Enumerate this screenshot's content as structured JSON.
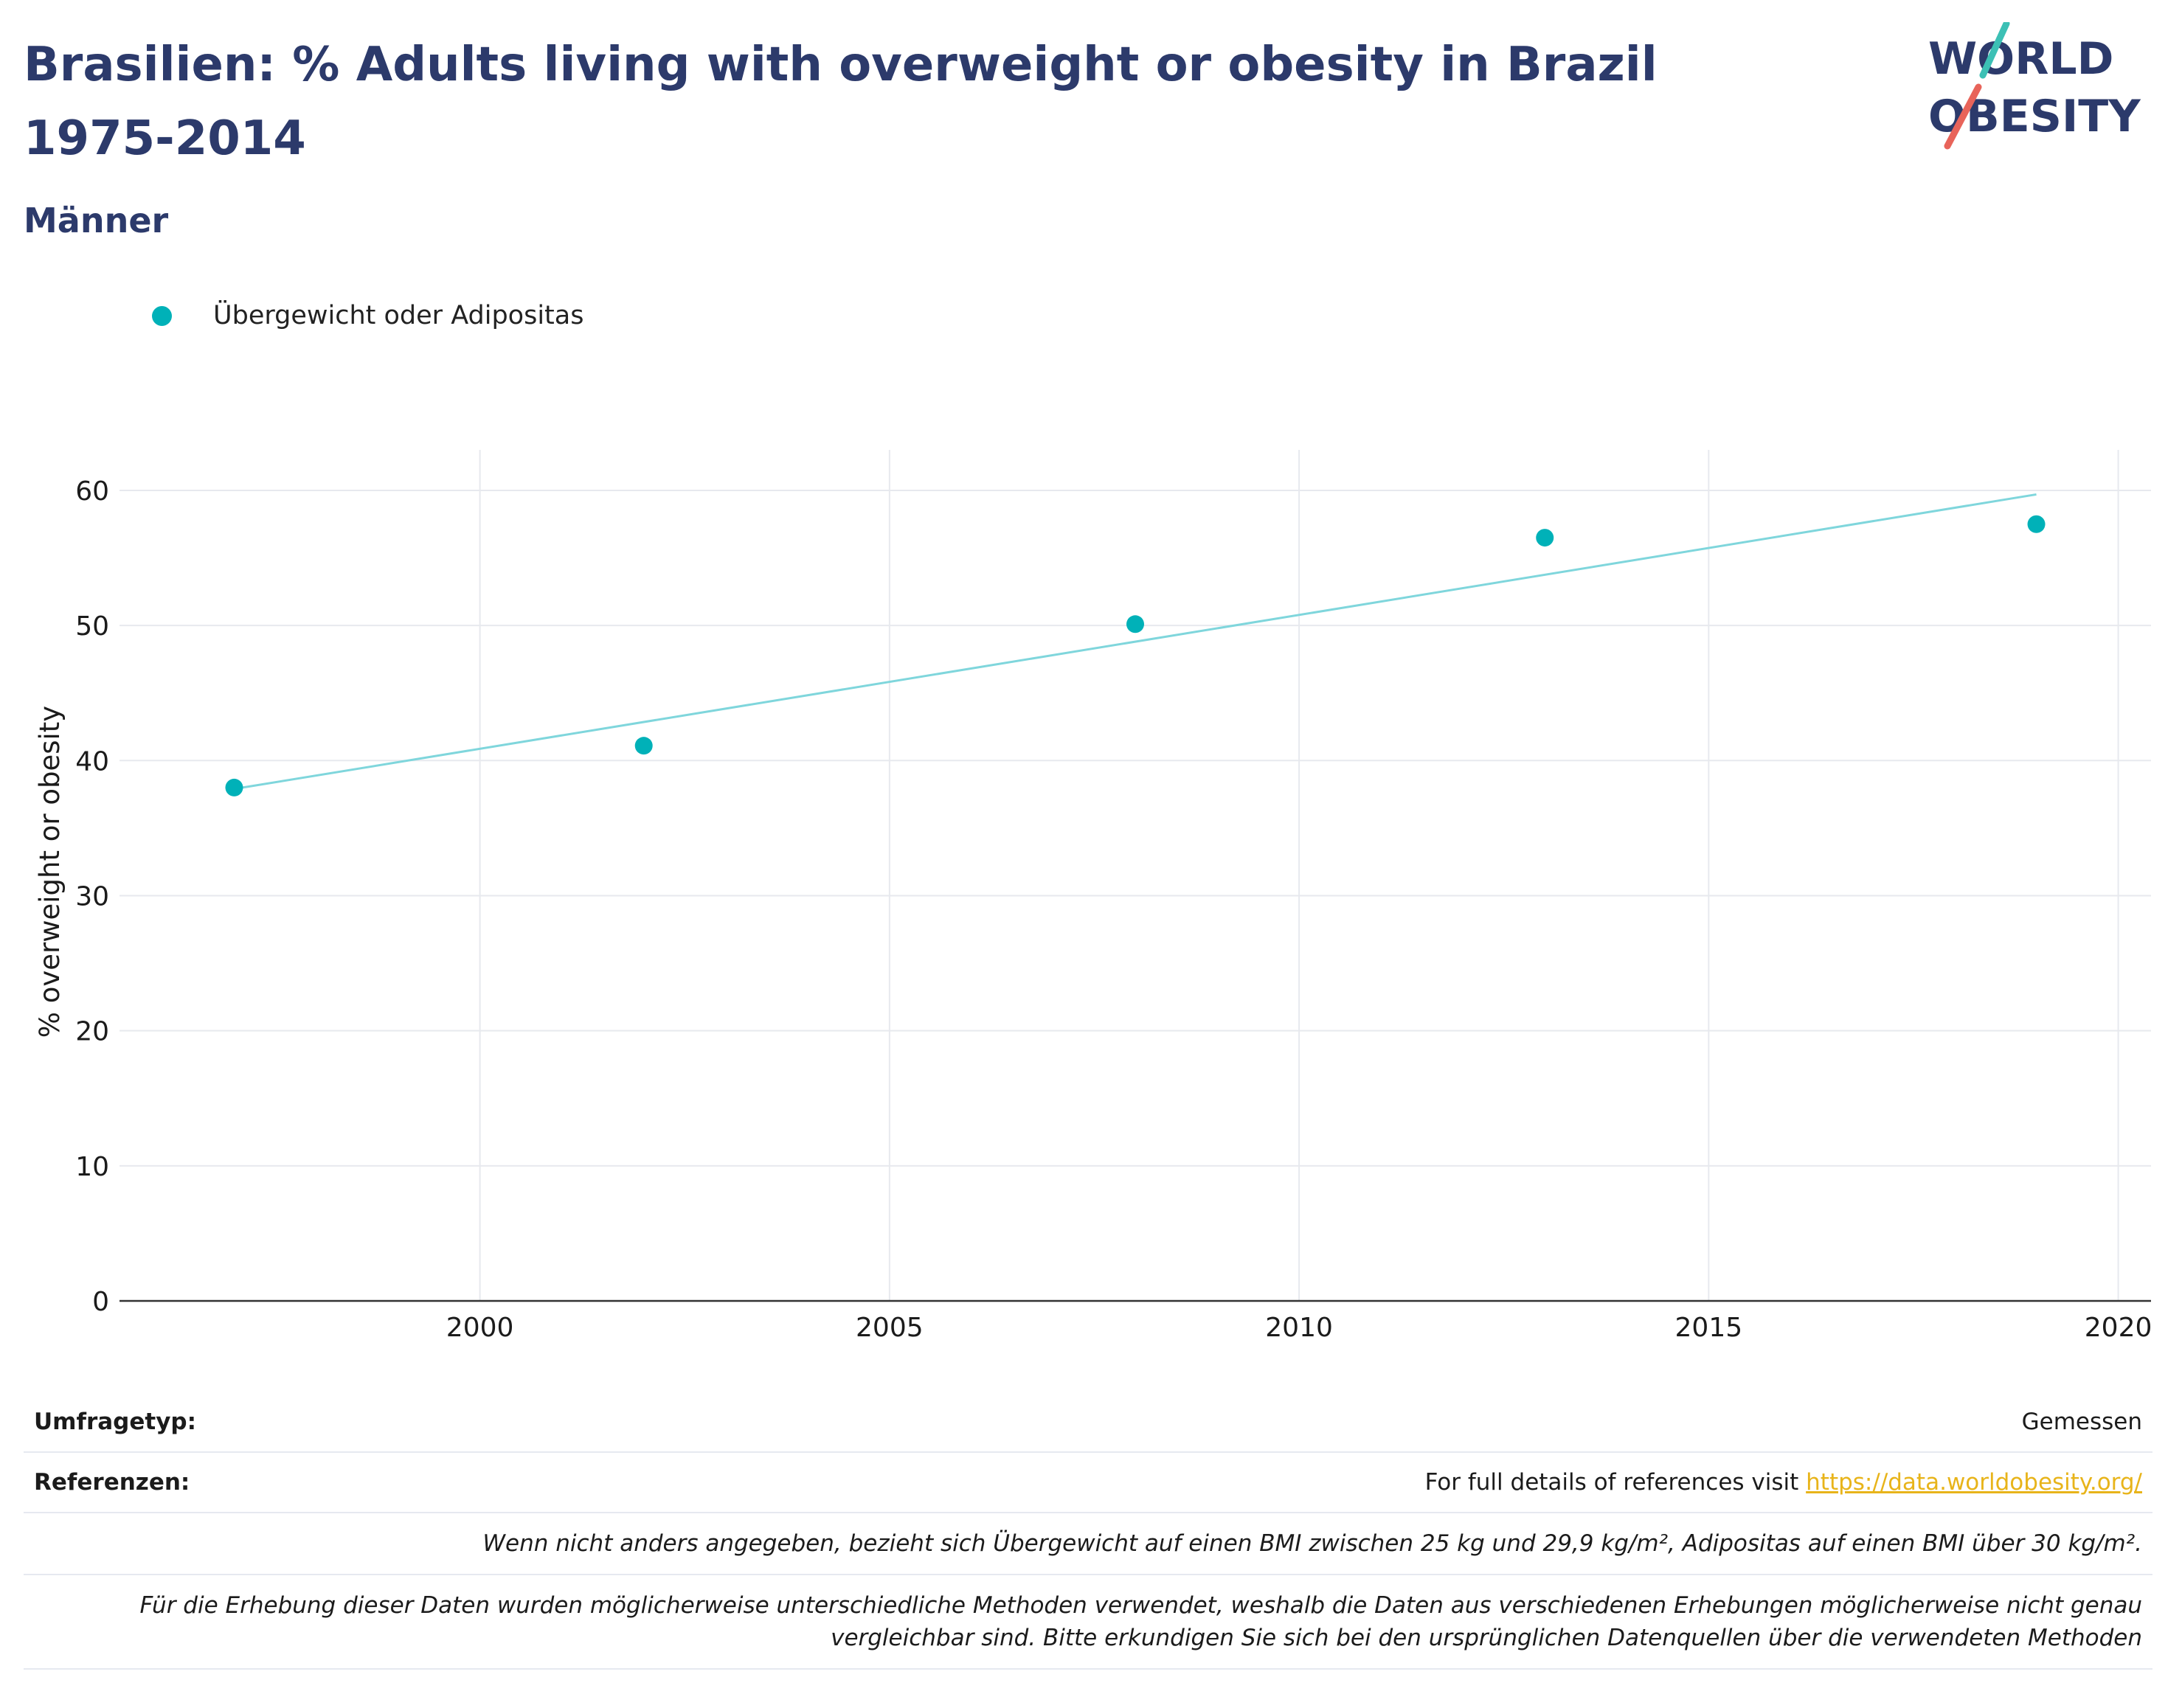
{
  "title": "Brasilien: % Adults living with overweight or obesity in Brazil 1975-2014",
  "subtitle": "Männer",
  "logo": {
    "line1": "WORLD",
    "line2": "OBESITY",
    "text_color": "#2c3a6b",
    "slash_colors": [
      "#3cc0b5",
      "#e8645a"
    ]
  },
  "legend": {
    "label": "Übergewicht oder Adipositas"
  },
  "chart_data": {
    "type": "scatter",
    "ylabel": "% overweight or obesity",
    "xlabel": "",
    "xlim": [
      1995.6,
      2020.4
    ],
    "ylim": [
      0,
      63
    ],
    "x_ticks": [
      2000,
      2005,
      2010,
      2015,
      2020
    ],
    "y_ticks": [
      0,
      10,
      20,
      30,
      40,
      50,
      60
    ],
    "grid": true,
    "legend_position": "top-left",
    "series": [
      {
        "name": "Übergewicht oder Adipositas",
        "color": "#00b1b8",
        "x": [
          1997,
          2002,
          2008,
          2013,
          2019
        ],
        "y": [
          38,
          41.1,
          50.1,
          56.5,
          57.5
        ]
      }
    ],
    "trendline": {
      "color": "#7fd6dc",
      "x": [
        1997,
        2019
      ],
      "y": [
        37.9,
        59.7
      ]
    }
  },
  "footer": {
    "survey_label": "Umfragetyp:",
    "survey_value": "Gemessen",
    "ref_label": "Referenzen:",
    "ref_text": "For full details of references visit ",
    "ref_link": "https://data.worldobesity.org/",
    "note1": "Wenn nicht anders angegeben, bezieht sich Übergewicht auf einen BMI zwischen 25 kg und 29,9 kg/m², Adipositas auf einen BMI über 30 kg/m².",
    "note2a": "Für die Erhebung dieser Daten wurden möglicherweise unterschiedliche Methoden verwendet, weshalb die Daten aus verschiedenen Erhebungen möglicherweise nicht genau",
    "note2b": "vergleichbar sind. Bitte erkundigen Sie sich bei den ursprünglichen Datenquellen über die verwendeten Methoden"
  }
}
